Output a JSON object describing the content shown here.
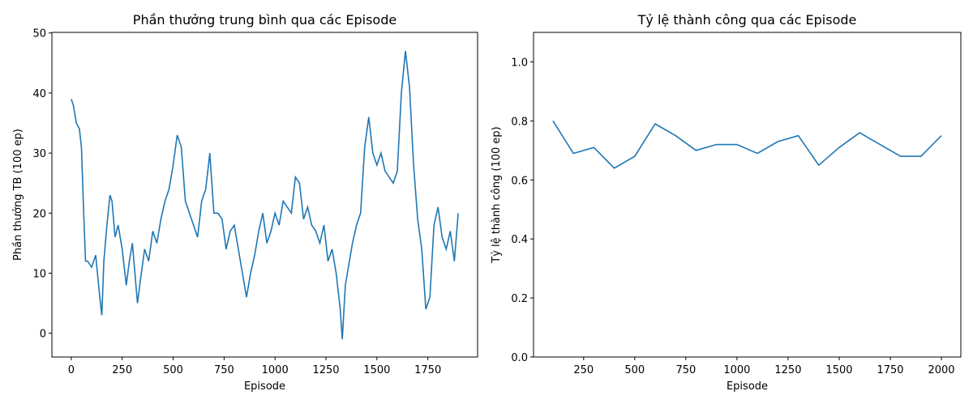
{
  "chart_data": [
    {
      "type": "line",
      "title": "Phần thưởng trung bình qua các Episode",
      "xlabel": "Episode",
      "ylabel": "Phần thưởng TB (100 ep)",
      "x": [
        0,
        10,
        25,
        40,
        50,
        60,
        70,
        80,
        100,
        120,
        140,
        150,
        160,
        175,
        190,
        200,
        215,
        230,
        250,
        270,
        285,
        300,
        325,
        340,
        360,
        380,
        400,
        420,
        440,
        460,
        480,
        500,
        520,
        540,
        560,
        580,
        600,
        620,
        640,
        660,
        680,
        700,
        720,
        740,
        760,
        780,
        800,
        820,
        840,
        860,
        880,
        900,
        920,
        940,
        960,
        980,
        1000,
        1020,
        1040,
        1060,
        1080,
        1100,
        1120,
        1140,
        1160,
        1180,
        1200,
        1220,
        1240,
        1260,
        1280,
        1300,
        1320,
        1330,
        1345,
        1360,
        1380,
        1400,
        1420,
        1440,
        1460,
        1480,
        1500,
        1520,
        1540,
        1560,
        1580,
        1600,
        1620,
        1640,
        1660,
        1680,
        1700,
        1720,
        1740,
        1760,
        1780,
        1800,
        1820,
        1840,
        1860,
        1880,
        1899
      ],
      "series": [
        {
          "color": "#1f77b4",
          "values": [
            39,
            38,
            35,
            34,
            31,
            21,
            12,
            12,
            11,
            13,
            6,
            3,
            12,
            18,
            23,
            22,
            16,
            18,
            14,
            8,
            12,
            15,
            5,
            9,
            14,
            12,
            17,
            15,
            19,
            22,
            24,
            28,
            33,
            31,
            22,
            20,
            18,
            16,
            22,
            24,
            30,
            20,
            20,
            19,
            14,
            17,
            18,
            14,
            10,
            6,
            10,
            13,
            17,
            20,
            15,
            17,
            20,
            18,
            22,
            21,
            20,
            26,
            25,
            19,
            21,
            18,
            17,
            15,
            18,
            12,
            14,
            10,
            4,
            -1,
            8,
            11,
            15,
            18,
            20,
            31,
            36,
            30,
            28,
            30,
            27,
            26,
            25,
            27,
            40,
            47,
            41,
            28,
            19,
            14,
            4,
            6,
            18,
            21,
            16,
            14,
            17,
            12,
            20
          ]
        }
      ],
      "xlim": [
        -95,
        1994
      ],
      "xticks": [
        0,
        250,
        500,
        750,
        1000,
        1250,
        1500,
        1750
      ],
      "ylim": [
        -3.96,
        50.1
      ],
      "yticks": [
        0,
        10,
        20,
        30,
        40,
        50
      ]
    },
    {
      "type": "line",
      "title": "Tỷ lệ thành công qua các Episode",
      "xlabel": "Episode",
      "ylabel": "Tỷ lệ thành công (100 ep)",
      "x": [
        100,
        200,
        300,
        400,
        500,
        600,
        700,
        800,
        900,
        1000,
        1100,
        1200,
        1300,
        1400,
        1500,
        1600,
        1700,
        1800,
        1900,
        2000
      ],
      "series": [
        {
          "color": "#1f77b4",
          "values": [
            0.8,
            0.69,
            0.71,
            0.64,
            0.68,
            0.79,
            0.75,
            0.7,
            0.72,
            0.72,
            0.69,
            0.73,
            0.75,
            0.65,
            0.71,
            0.76,
            0.72,
            0.68,
            0.68,
            0.75
          ]
        }
      ],
      "xlim": [
        5,
        2095
      ],
      "xticks": [
        250,
        500,
        750,
        1000,
        1250,
        1500,
        1750,
        2000
      ],
      "ylim": [
        0,
        1.1
      ],
      "yticks": [
        {
          "value": 0,
          "label": "0.0"
        },
        {
          "value": 0.2,
          "label": "0.2"
        },
        {
          "value": 0.4,
          "label": "0.4"
        },
        {
          "value": 0.6,
          "label": "0.6"
        },
        {
          "value": 0.8,
          "label": "0.8"
        },
        {
          "value": 1.0,
          "label": "1.0"
        }
      ]
    }
  ]
}
